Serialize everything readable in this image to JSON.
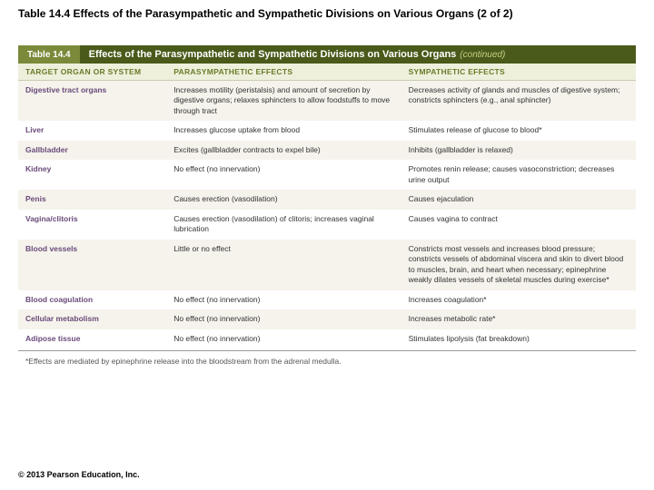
{
  "slide": {
    "title": "Table 14.4  Effects of the Parasympathetic and Sympathetic Divisions on Various Organs (2 of 2)"
  },
  "banner": {
    "label": "Table 14.4",
    "title": "Effects of the Parasympathetic and Sympathetic Divisions on Various Organs",
    "continued": "(continued)"
  },
  "columns": {
    "c1": "TARGET ORGAN OR SYSTEM",
    "c2": "PARASYMPATHETIC EFFECTS",
    "c3": "SYMPATHETIC EFFECTS"
  },
  "rows": [
    {
      "organ": "Digestive tract organs",
      "para": "Increases motility (peristalsis) and amount of secretion by digestive organs; relaxes sphincters to allow foodstuffs to move through tract",
      "symp": "Decreases activity of glands and muscles of digestive system; constricts sphincters (e.g., anal sphincter)"
    },
    {
      "organ": "Liver",
      "para": "Increases glucose uptake from blood",
      "symp": "Stimulates release of glucose to blood*"
    },
    {
      "organ": "Gallbladder",
      "para": "Excites (gallbladder contracts to expel bile)",
      "symp": "Inhibits (gallbladder is relaxed)"
    },
    {
      "organ": "Kidney",
      "para": "No effect (no innervation)",
      "symp": "Promotes renin release; causes vasoconstriction; decreases urine output"
    },
    {
      "organ": "Penis",
      "para": "Causes erection (vasodilation)",
      "symp": "Causes ejaculation"
    },
    {
      "organ": "Vagina/clitoris",
      "para": "Causes erection (vasodilation) of clitoris; increases vaginal lubrication",
      "symp": "Causes vagina to contract"
    },
    {
      "organ": "Blood vessels",
      "para": "Little or no effect",
      "symp": "Constricts most vessels and increases blood pressure; constricts vessels of abdominal viscera and skin to divert blood to muscles, brain, and heart when necessary; epinephrine weakly dilates vessels of skeletal muscles during exercise*"
    },
    {
      "organ": "Blood coagulation",
      "para": "No effect (no innervation)",
      "symp": "Increases coagulation*"
    },
    {
      "organ": "Cellular metabolism",
      "para": "No effect (no innervation)",
      "symp": "Increases metabolic rate*"
    },
    {
      "organ": "Adipose tissue",
      "para": "No effect (no innervation)",
      "symp": "Stimulates lipolysis (fat breakdown)"
    }
  ],
  "footnote": "*Effects are mediated by epinephrine release into the bloodstream from the adrenal medulla.",
  "copyright": "© 2013 Pearson Education, Inc.",
  "style": {
    "banner_label_bg": "#7a8a3a",
    "banner_title_bg": "#4a5a1a",
    "header_bg": "#eef0dc",
    "header_fg": "#6a7a2a",
    "row_odd_bg": "#f5f3ec",
    "row_even_bg": "#ffffff",
    "organ_color": "#6a4a7a",
    "col_widths": [
      "24%",
      "38%",
      "38%"
    ]
  }
}
